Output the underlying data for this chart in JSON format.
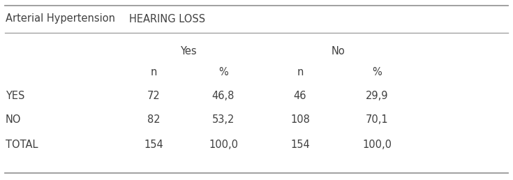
{
  "col1_header": "Arterial Hypertension",
  "col2_header": "HEARING LOSS",
  "subheader_yes": "Yes",
  "subheader_no": "No",
  "sub_col_n1": "n",
  "sub_col_pct1": "%",
  "sub_col_n2": "n",
  "sub_col_pct2": "%",
  "rows": [
    {
      "label": "YES",
      "n1": "72",
      "pct1": "46,8",
      "n2": "46",
      "pct2": "29,9"
    },
    {
      "label": "NO",
      "n1": "82",
      "pct1": "53,2",
      "n2": "108",
      "pct2": "70,1"
    },
    {
      "label": "TOTAL",
      "n1": "154",
      "pct1": "100,0",
      "n2": "154",
      "pct2": "100,0"
    }
  ],
  "bg_color": "#ffffff",
  "text_color": "#404040",
  "line_color": "#999999",
  "font_size": 10.5
}
